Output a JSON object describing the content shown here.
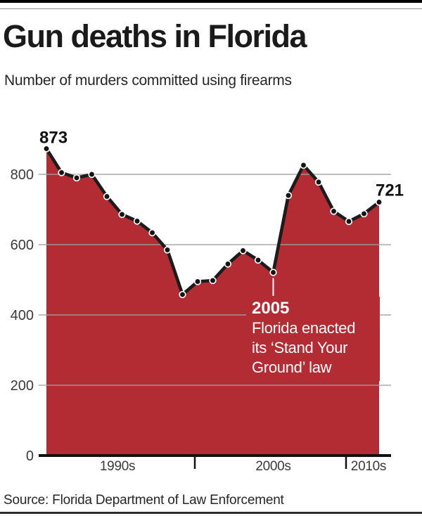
{
  "page": {
    "title": "Gun deaths in Florida",
    "subtitle": "Number of murders committed using firearms",
    "source": "Source: Florida Department of Law Enforcement"
  },
  "chart_data": {
    "type": "area",
    "title": "Gun deaths in Florida",
    "subtitle": "Number of murders committed using firearms",
    "source": "Source: Florida Department of Law Enforcement",
    "x": [
      1990,
      1991,
      1992,
      1993,
      1994,
      1995,
      1996,
      1997,
      1998,
      1999,
      2000,
      2001,
      2002,
      2003,
      2004,
      2005,
      2006,
      2007,
      2008,
      2009,
      2010,
      2011,
      2012
    ],
    "values": [
      873,
      805,
      790,
      800,
      737,
      686,
      667,
      634,
      585,
      458,
      495,
      498,
      545,
      583,
      556,
      521,
      740,
      826,
      778,
      695,
      666,
      688,
      721
    ],
    "ylim": [
      0,
      900
    ],
    "yticks": [
      0,
      200,
      400,
      600,
      800
    ],
    "grid": true,
    "legend_position": "none",
    "x_axis": {
      "ticks": [
        2000,
        2010
      ],
      "labels": [
        {
          "text": "1990s",
          "year": 1994.7
        },
        {
          "text": "2000s",
          "year": 2005.0
        },
        {
          "text": "2010s",
          "year": 2011.3
        }
      ]
    },
    "point_labels": [
      {
        "year": 1990,
        "text": "873"
      },
      {
        "year": 2012,
        "text": "721"
      }
    ],
    "annotation": {
      "year": 2005,
      "heading": "2005",
      "lines": [
        "Florida enacted",
        "its ‘Stand Your",
        "Ground’ law"
      ]
    },
    "colors": {
      "area": "#b32b33",
      "line": "#1c1c1c",
      "dot": "#141414",
      "dot_ring": "#ffffff",
      "grid": "#a0a0a0",
      "axis": "#111111",
      "tick_label": "#3a3a3a",
      "point_label": "#111111",
      "annotation_text": "#ffffff"
    }
  }
}
